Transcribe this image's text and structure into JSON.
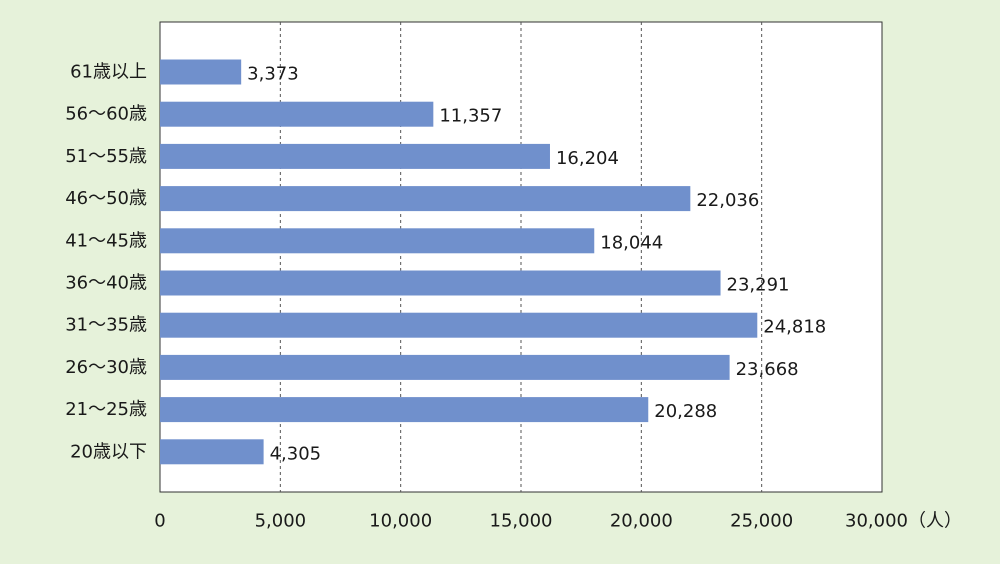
{
  "chart_data": {
    "type": "bar",
    "orientation": "horizontal",
    "categories": [
      "61歳以上",
      "56～60歳",
      "51～55歳",
      "46～50歳",
      "41～45歳",
      "36～40歳",
      "31～35歳",
      "26～30歳",
      "21～25歳",
      "20歳以下"
    ],
    "values": [
      3373,
      11357,
      16204,
      22036,
      18044,
      23291,
      24818,
      23668,
      20288,
      4305
    ],
    "value_labels": [
      "3,373",
      "11,357",
      "16,204",
      "22,036",
      "18,044",
      "23,291",
      "24,818",
      "23,668",
      "20,288",
      "4,305"
    ],
    "x_ticks": [
      0,
      5000,
      10000,
      15000,
      20000,
      25000,
      30000
    ],
    "x_tick_labels": [
      "0",
      "5,000",
      "10,000",
      "15,000",
      "20,000",
      "25,000",
      "30,000"
    ],
    "x_unit": "（人）",
    "xlim": [
      0,
      30000
    ],
    "grid": true,
    "grid_style": "dashed vertical",
    "bar_color": "#7090cc",
    "background_color": "#e6f2da",
    "plot_background": "#ffffff"
  }
}
